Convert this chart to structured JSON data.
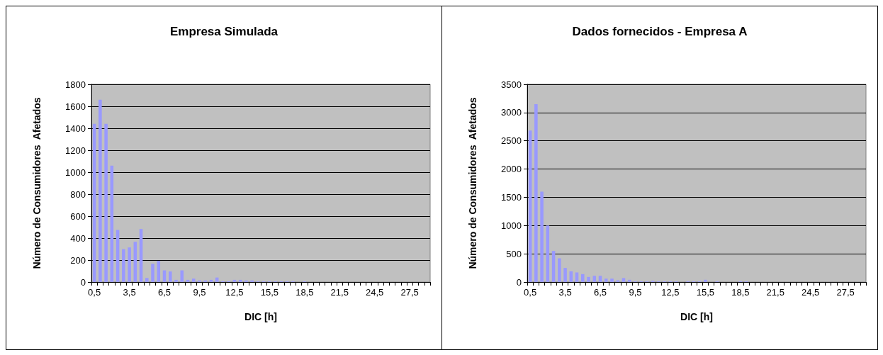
{
  "chart_data": [
    {
      "type": "bar",
      "title": "Empresa Simulada",
      "xlabel": "DIC [h]",
      "ylabel": "Número de Consumidores  Afetados",
      "color": "#9999ff",
      "categories": [
        "0,5",
        null,
        null,
        null,
        null,
        null,
        "3,5",
        null,
        null,
        null,
        null,
        null,
        "6,5",
        null,
        null,
        null,
        null,
        null,
        "9,5",
        null,
        null,
        null,
        null,
        null,
        "12,5",
        null,
        null,
        null,
        null,
        null,
        "15,5",
        null,
        null,
        null,
        null,
        null,
        "18,5",
        null,
        null,
        null,
        null,
        null,
        "21,5",
        null,
        null,
        null,
        null,
        null,
        "24,5",
        null,
        null,
        null,
        null,
        null,
        "27,5",
        null,
        null,
        null
      ],
      "values": [
        1440,
        1660,
        1440,
        1060,
        474,
        299,
        315,
        366,
        483,
        37,
        166,
        192,
        106,
        96,
        20,
        106,
        20,
        31,
        14,
        14,
        20,
        41,
        6,
        6,
        20,
        20,
        14,
        14,
        5,
        5,
        5,
        5,
        5,
        5,
        5,
        0,
        5,
        0,
        0,
        0,
        0,
        0,
        0,
        0,
        0,
        0,
        0,
        0,
        0,
        0,
        0,
        0,
        0,
        0,
        0,
        0,
        0,
        0
      ],
      "ylim": [
        0,
        1800
      ],
      "yticks": [
        0,
        200,
        400,
        600,
        800,
        1000,
        1200,
        1400,
        1600,
        1800
      ],
      "grid": "y"
    },
    {
      "type": "bar",
      "title": "Dados fornecidos - Empresa A",
      "xlabel": "DIC [h]",
      "ylabel": "Número de Consumidores  Afetados",
      "color": "#9999ff",
      "categories": [
        "0,5",
        null,
        null,
        null,
        null,
        null,
        "3,5",
        null,
        null,
        null,
        null,
        null,
        "6,5",
        null,
        null,
        null,
        null,
        null,
        "9,5",
        null,
        null,
        null,
        null,
        null,
        "12,5",
        null,
        null,
        null,
        null,
        null,
        "15,5",
        null,
        null,
        null,
        null,
        null,
        "18,5",
        null,
        null,
        null,
        null,
        null,
        "21,5",
        null,
        null,
        null,
        null,
        null,
        "24,5",
        null,
        null,
        null,
        null,
        null,
        "27,5",
        null,
        null,
        null
      ],
      "values": [
        2680,
        3150,
        1600,
        1000,
        550,
        420,
        250,
        190,
        170,
        140,
        90,
        110,
        110,
        60,
        60,
        30,
        70,
        40,
        10,
        10,
        10,
        20,
        10,
        10,
        10,
        10,
        0,
        10,
        10,
        10,
        40,
        0,
        10,
        0,
        0,
        0,
        10,
        10,
        0,
        0,
        0,
        0,
        0,
        0,
        0,
        0,
        0,
        0,
        0,
        0,
        0,
        0,
        0,
        0,
        0,
        0,
        0,
        0
      ],
      "ylim": [
        0,
        3500
      ],
      "yticks": [
        0,
        500,
        1000,
        1500,
        2000,
        2500,
        3000,
        3500
      ],
      "grid": "y"
    }
  ]
}
